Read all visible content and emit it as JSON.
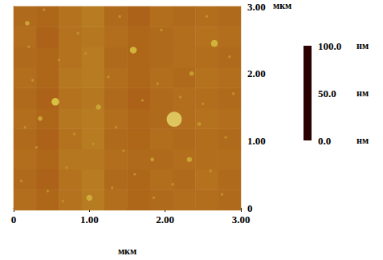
{
  "chart_data": {
    "type": "heatmap",
    "x_label": "мкм",
    "y_label": "мкм",
    "xlim": [
      0,
      3
    ],
    "ylim": [
      0,
      3
    ],
    "xticks": [
      0,
      {
        "value": 1,
        "label": "1.00"
      },
      {
        "value": 2,
        "label": "2.00"
      },
      {
        "value": 3,
        "label": "3.00"
      }
    ],
    "yticks": [
      0,
      {
        "value": 1,
        "label": "1.00"
      },
      {
        "value": 2,
        "label": "2.00"
      },
      {
        "value": 3,
        "label": "3.00"
      }
    ],
    "cells": [
      [
        55,
        53,
        56,
        58,
        55,
        53,
        54,
        55,
        55,
        54
      ],
      [
        54,
        52,
        56,
        58,
        54,
        53,
        55,
        54,
        56,
        54
      ],
      [
        55,
        53,
        57,
        57,
        55,
        54,
        54,
        55,
        55,
        55
      ],
      [
        54,
        52,
        56,
        58,
        54,
        53,
        55,
        54,
        55,
        54
      ],
      [
        55,
        53,
        57,
        58,
        55,
        53,
        54,
        55,
        56,
        55
      ],
      [
        54,
        52,
        56,
        57,
        54,
        52,
        54,
        55,
        55,
        54
      ],
      [
        55,
        53,
        57,
        58,
        55,
        53,
        55,
        54,
        56,
        55
      ],
      [
        54,
        53,
        56,
        58,
        54,
        53,
        54,
        55,
        55,
        54
      ],
      [
        55,
        52,
        56,
        57,
        55,
        53,
        54,
        55,
        56,
        55
      ],
      [
        54,
        53,
        56,
        58,
        54,
        52,
        55,
        54,
        55,
        54
      ]
    ],
    "grains": {
      "x": [
        2.12,
        0.55,
        1.58,
        2.65,
        1.12,
        0.18,
        0.35,
        1.0,
        2.32,
        1.83,
        2.35,
        2.45,
        0.1,
        0.3,
        0.45,
        0.7,
        0.8,
        0.25,
        0.6,
        0.85,
        0.4,
        1.3,
        1.45,
        1.25,
        1.7,
        1.95,
        1.4,
        1.9,
        2.1,
        2.6,
        2.8,
        2.9,
        2.55,
        2.75,
        0.15,
        0.95,
        1.6,
        2.2,
        2.85,
        1.05,
        0.65,
        1.85,
        2.5,
        0.2,
        1.35
      ],
      "y": [
        1.32,
        1.58,
        2.35,
        2.45,
        1.5,
        2.75,
        1.33,
        0.15,
        0.72,
        0.72,
        2.0,
        1.25,
        0.4,
        0.9,
        0.25,
        0.6,
        1.1,
        1.9,
        2.2,
        2.6,
        2.95,
        0.3,
        0.85,
        1.95,
        1.6,
        2.65,
        2.85,
        1.85,
        0.35,
        0.55,
        1.05,
        1.7,
        2.85,
        0.2,
        1.2,
        2.3,
        0.5,
        1.65,
        2.25,
        0.95,
        0.1,
        0.15,
        1.55,
        2.4,
        1.2
      ],
      "height": [
        80,
        75,
        72,
        72,
        68,
        68,
        68,
        70,
        68,
        66,
        66,
        64,
        63,
        63,
        63,
        63,
        63,
        63,
        63,
        63,
        63,
        63,
        63,
        63,
        63,
        63,
        63,
        63,
        63,
        63,
        63,
        63,
        63,
        63,
        63,
        63,
        63,
        63,
        63,
        63,
        63,
        63,
        63,
        63,
        63
      ],
      "diameter": [
        0.2,
        0.1,
        0.09,
        0.09,
        0.07,
        0.06,
        0.06,
        0.08,
        0.07,
        0.05,
        0.06,
        0.05,
        0.035,
        0.035,
        0.035,
        0.035,
        0.035,
        0.035,
        0.035,
        0.035,
        0.035,
        0.035,
        0.035,
        0.035,
        0.035,
        0.035,
        0.035,
        0.035,
        0.035,
        0.035,
        0.035,
        0.035,
        0.035,
        0.035,
        0.035,
        0.035,
        0.035,
        0.035,
        0.035,
        0.035,
        0.035,
        0.035,
        0.035,
        0.035,
        0.035
      ]
    },
    "colorbar": {
      "range": [
        0,
        100
      ],
      "ticks": [
        {
          "value": 0,
          "label": "0.0"
        },
        {
          "value": 50,
          "label": "50.0"
        },
        {
          "value": 100,
          "label": "100.0"
        }
      ],
      "unit": "нм",
      "colors": [
        "#2a0000",
        "#6e1e05",
        "#a85a14",
        "#d8c040",
        "#f4d8d8"
      ]
    }
  }
}
